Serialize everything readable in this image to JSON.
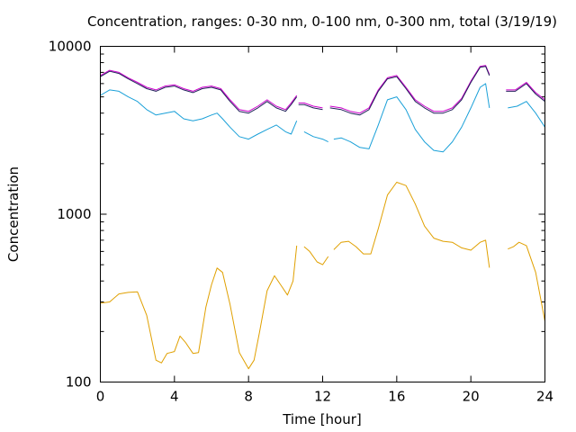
{
  "chart_data": {
    "type": "line",
    "title": "Concentration, ranges: 0-30 nm, 0-100 nm, 0-300 nm, total (3/19/19)",
    "xlabel": "Time [hour]",
    "ylabel": "Concentration",
    "xlim": [
      0,
      24
    ],
    "ylim": [
      100,
      10000
    ],
    "yscale": "log",
    "grid": false,
    "xticks": [
      0,
      4,
      8,
      12,
      16,
      20,
      24
    ],
    "xtick_labels": [
      "0",
      "4",
      "8",
      "12",
      "16",
      "20",
      "24"
    ],
    "yticks": [
      100,
      1000,
      10000
    ],
    "ytick_labels": [
      "100",
      "1000",
      "10000"
    ],
    "series": [
      {
        "color": "#e0a000",
        "segments": [
          [
            [
              0,
              295
            ],
            [
              0.5,
              300
            ],
            [
              1,
              335
            ],
            [
              1.5,
              342
            ],
            [
              2,
              345
            ],
            [
              2.5,
              250
            ],
            [
              3,
              135
            ],
            [
              3.3,
              130
            ],
            [
              3.6,
              148
            ],
            [
              4,
              152
            ],
            [
              4.3,
              188
            ],
            [
              4.6,
              172
            ],
            [
              5,
              148
            ],
            [
              5.3,
              150
            ],
            [
              5.7,
              280
            ],
            [
              6,
              380
            ],
            [
              6.3,
              478
            ],
            [
              6.6,
              450
            ],
            [
              7,
              290
            ],
            [
              7.5,
              150
            ],
            [
              8,
              120
            ],
            [
              8.3,
              135
            ],
            [
              8.6,
              200
            ],
            [
              9,
              350
            ],
            [
              9.4,
              430
            ],
            [
              9.8,
              370
            ],
            [
              10.1,
              330
            ],
            [
              10.4,
              400
            ],
            [
              10.6,
              650
            ]
          ],
          [
            [
              11,
              640
            ],
            [
              11.3,
              600
            ],
            [
              11.7,
              520
            ],
            [
              12,
              500
            ],
            [
              12.3,
              560
            ]
          ],
          [
            [
              12.6,
              615
            ],
            [
              13,
              680
            ],
            [
              13.4,
              690
            ],
            [
              13.8,
              640
            ],
            [
              14.2,
              580
            ],
            [
              14.6,
              580
            ],
            [
              15,
              820
            ],
            [
              15.5,
              1300
            ],
            [
              16,
              1550
            ],
            [
              16.5,
              1480
            ],
            [
              17,
              1150
            ],
            [
              17.5,
              850
            ],
            [
              18,
              720
            ],
            [
              18.5,
              690
            ],
            [
              19,
              680
            ],
            [
              19.5,
              630
            ],
            [
              20,
              610
            ],
            [
              20.5,
              680
            ],
            [
              20.8,
              700
            ],
            [
              21,
              480
            ]
          ],
          [
            [
              22,
              620
            ],
            [
              22.3,
              640
            ],
            [
              22.6,
              680
            ],
            [
              23,
              650
            ],
            [
              23.5,
              450
            ],
            [
              24,
              230
            ]
          ]
        ]
      },
      {
        "color": "#1aa0d8",
        "segments": [
          [
            [
              0,
              5100
            ],
            [
              0.5,
              5500
            ],
            [
              1,
              5400
            ],
            [
              1.5,
              5000
            ],
            [
              2,
              4700
            ],
            [
              2.5,
              4200
            ],
            [
              3,
              3900
            ],
            [
              3.5,
              4000
            ],
            [
              4,
              4100
            ],
            [
              4.5,
              3700
            ],
            [
              5,
              3600
            ],
            [
              5.5,
              3700
            ],
            [
              6,
              3900
            ],
            [
              6.3,
              4000
            ],
            [
              6.6,
              3700
            ],
            [
              7,
              3300
            ],
            [
              7.5,
              2900
            ],
            [
              8,
              2800
            ],
            [
              8.5,
              3000
            ],
            [
              9,
              3200
            ],
            [
              9.5,
              3400
            ],
            [
              10,
              3100
            ],
            [
              10.3,
              3000
            ],
            [
              10.6,
              3600
            ]
          ],
          [
            [
              11,
              3100
            ],
            [
              11.5,
              2900
            ],
            [
              12,
              2800
            ],
            [
              12.3,
              2700
            ]
          ],
          [
            [
              12.6,
              2800
            ],
            [
              13,
              2850
            ],
            [
              13.5,
              2700
            ],
            [
              14,
              2500
            ],
            [
              14.5,
              2450
            ],
            [
              15,
              3400
            ],
            [
              15.5,
              4800
            ],
            [
              16,
              5000
            ],
            [
              16.5,
              4200
            ],
            [
              17,
              3200
            ],
            [
              17.5,
              2700
            ],
            [
              18,
              2400
            ],
            [
              18.5,
              2350
            ],
            [
              19,
              2700
            ],
            [
              19.5,
              3300
            ],
            [
              20,
              4300
            ],
            [
              20.5,
              5700
            ],
            [
              20.8,
              6000
            ],
            [
              21,
              4300
            ]
          ],
          [
            [
              22,
              4300
            ],
            [
              22.5,
              4400
            ],
            [
              23,
              4700
            ],
            [
              23.5,
              4000
            ],
            [
              24,
              3300
            ]
          ]
        ]
      },
      {
        "color": "#cc00cc",
        "segments": [
          [
            [
              0,
              6700
            ],
            [
              0.5,
              7200
            ],
            [
              1,
              7000
            ],
            [
              1.5,
              6500
            ],
            [
              2,
              6100
            ],
            [
              2.5,
              5700
            ],
            [
              3,
              5500
            ],
            [
              3.5,
              5800
            ],
            [
              4,
              5900
            ],
            [
              4.5,
              5600
            ],
            [
              5,
              5400
            ],
            [
              5.5,
              5700
            ],
            [
              6,
              5800
            ],
            [
              6.5,
              5600
            ],
            [
              7,
              4800
            ],
            [
              7.5,
              4200
            ],
            [
              8,
              4100
            ],
            [
              8.5,
              4400
            ],
            [
              9,
              4800
            ],
            [
              9.5,
              4400
            ],
            [
              10,
              4200
            ],
            [
              10.3,
              4600
            ],
            [
              10.6,
              5100
            ]
          ],
          [
            [
              10.7,
              4600
            ],
            [
              11,
              4600
            ],
            [
              11.5,
              4400
            ],
            [
              12,
              4300
            ]
          ],
          [
            [
              12.4,
              4400
            ],
            [
              13,
              4300
            ],
            [
              13.5,
              4100
            ],
            [
              14,
              4000
            ],
            [
              14.5,
              4300
            ],
            [
              15,
              5500
            ],
            [
              15.5,
              6500
            ],
            [
              16,
              6700
            ],
            [
              16.5,
              5700
            ],
            [
              17,
              4800
            ],
            [
              17.5,
              4400
            ],
            [
              18,
              4100
            ],
            [
              18.5,
              4100
            ],
            [
              19,
              4300
            ],
            [
              19.5,
              4900
            ],
            [
              20,
              6200
            ],
            [
              20.5,
              7600
            ],
            [
              20.8,
              7700
            ],
            [
              21,
              6800
            ]
          ],
          [
            [
              21.9,
              5500
            ],
            [
              22.4,
              5500
            ],
            [
              23,
              6100
            ],
            [
              23.5,
              5300
            ],
            [
              24,
              4800
            ]
          ]
        ]
      },
      {
        "color": "#20205a",
        "segments": [
          [
            [
              0,
              6600
            ],
            [
              0.5,
              7100
            ],
            [
              1,
              6900
            ],
            [
              1.5,
              6400
            ],
            [
              2,
              6000
            ],
            [
              2.5,
              5600
            ],
            [
              3,
              5400
            ],
            [
              3.5,
              5700
            ],
            [
              4,
              5800
            ],
            [
              4.5,
              5500
            ],
            [
              5,
              5300
            ],
            [
              5.5,
              5600
            ],
            [
              6,
              5700
            ],
            [
              6.5,
              5500
            ],
            [
              7,
              4700
            ],
            [
              7.5,
              4100
            ],
            [
              8,
              4000
            ],
            [
              8.5,
              4300
            ],
            [
              9,
              4700
            ],
            [
              9.5,
              4300
            ],
            [
              10,
              4100
            ],
            [
              10.3,
              4500
            ],
            [
              10.6,
              5000
            ]
          ],
          [
            [
              10.7,
              4500
            ],
            [
              11,
              4500
            ],
            [
              11.5,
              4300
            ],
            [
              12,
              4200
            ]
          ],
          [
            [
              12.4,
              4300
            ],
            [
              13,
              4200
            ],
            [
              13.5,
              4000
            ],
            [
              14,
              3900
            ],
            [
              14.5,
              4200
            ],
            [
              15,
              5400
            ],
            [
              15.5,
              6400
            ],
            [
              16,
              6600
            ],
            [
              16.5,
              5600
            ],
            [
              17,
              4700
            ],
            [
              17.5,
              4300
            ],
            [
              18,
              4000
            ],
            [
              18.5,
              4000
            ],
            [
              19,
              4200
            ],
            [
              19.5,
              4800
            ],
            [
              20,
              6100
            ],
            [
              20.5,
              7500
            ],
            [
              20.8,
              7600
            ],
            [
              21,
              6700
            ]
          ],
          [
            [
              21.9,
              5400
            ],
            [
              22.4,
              5400
            ],
            [
              23,
              6000
            ],
            [
              23.5,
              5200
            ],
            [
              24,
              4700
            ]
          ]
        ]
      }
    ]
  }
}
